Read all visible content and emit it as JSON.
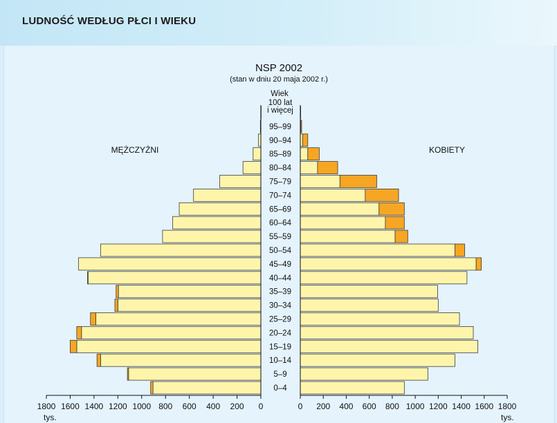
{
  "page": {
    "title": "LUDNOŚĆ WEDŁUG PŁCI I WIEKU"
  },
  "chart_data": {
    "type": "population-pyramid",
    "title": "NSP 2002",
    "subtitle": "(stan w dniu 20 maja 2002 r.)",
    "age_axis_label": "Wiek",
    "left_label": "MĘŻCZYŹNI",
    "right_label": "KOBIETY",
    "unit_left": "tys.",
    "unit_right": "tys.",
    "xlim": [
      0,
      1800
    ],
    "x_ticks": [
      "1800",
      "1600",
      "1400",
      "1200",
      "1000",
      "800",
      "600",
      "400",
      "200",
      "0"
    ],
    "x_ticks_right": [
      "0",
      "200",
      "400",
      "600",
      "800",
      "1000",
      "1200",
      "1400",
      "1600",
      "1800"
    ],
    "colors": {
      "base": "#fef5ab",
      "excess": "#f6a623",
      "outline": "#3a3a3a"
    },
    "groups": [
      {
        "age": [
          "0–4"
        ],
        "men": 925,
        "women": 905,
        "excess_side": "men"
      },
      {
        "age": [
          "5–9"
        ],
        "men": 1120,
        "women": 1110,
        "excess_side": "men"
      },
      {
        "age": [
          "10–14"
        ],
        "men": 1375,
        "women": 1345,
        "excess_side": "men"
      },
      {
        "age": [
          "15–19"
        ],
        "men": 1600,
        "women": 1545,
        "excess_side": "men"
      },
      {
        "age": [
          "20–24"
        ],
        "men": 1545,
        "women": 1505,
        "excess_side": "men"
      },
      {
        "age": [
          "25–29"
        ],
        "men": 1430,
        "women": 1385,
        "excess_side": "men"
      },
      {
        "age": [
          "30–34"
        ],
        "men": 1225,
        "women": 1200,
        "excess_side": "men"
      },
      {
        "age": [
          "35–39"
        ],
        "men": 1215,
        "women": 1195,
        "excess_side": "men"
      },
      {
        "age": [
          "40–44"
        ],
        "men": 1455,
        "women": 1450,
        "excess_side": "men"
      },
      {
        "age": [
          "45–49"
        ],
        "men": 1530,
        "women": 1575,
        "excess_side": "women"
      },
      {
        "age": [
          "50–54"
        ],
        "men": 1345,
        "women": 1430,
        "excess_side": "women"
      },
      {
        "age": [
          "55–59"
        ],
        "men": 825,
        "women": 935,
        "excess_side": "women"
      },
      {
        "age": [
          "60–64"
        ],
        "men": 740,
        "women": 905,
        "excess_side": "women"
      },
      {
        "age": [
          "65–69"
        ],
        "men": 685,
        "women": 905,
        "excess_side": "women"
      },
      {
        "age": [
          "70–74"
        ],
        "men": 565,
        "women": 855,
        "excess_side": "women"
      },
      {
        "age": [
          "75–79"
        ],
        "men": 345,
        "women": 665,
        "excess_side": "women"
      },
      {
        "age": [
          "80–84"
        ],
        "men": 150,
        "women": 325,
        "excess_side": "women"
      },
      {
        "age": [
          "85–89"
        ],
        "men": 65,
        "women": 165,
        "excess_side": "women"
      },
      {
        "age": [
          "90–94"
        ],
        "men": 20,
        "women": 65,
        "excess_side": "women"
      },
      {
        "age": [
          "95–99"
        ],
        "men": 4,
        "women": 12,
        "excess_side": "women"
      },
      {
        "age": [
          "100 lat",
          "i więcej"
        ],
        "men": 1,
        "women": 3,
        "excess_side": "women"
      }
    ]
  }
}
